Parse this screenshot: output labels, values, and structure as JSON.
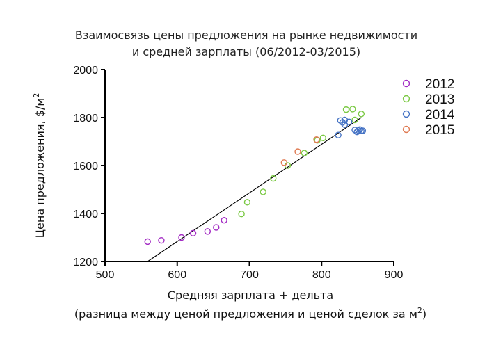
{
  "chart_data": {
    "type": "scatter",
    "title": "Взаимосвязь цены предложения на рынке недвижимости",
    "subtitle": "и средней зарплаты (06/2012-03/2015)",
    "xlabel": "Средняя зарплата + дельта",
    "xlabel2_main": "(разница между ценой предложения и ценой сделок за м",
    "xlabel2_sup": "2",
    "xlabel2_end": ")",
    "ylabel_main": "Цена предложения, $/м",
    "ylabel_sup": "2",
    "xlim": [
      500,
      900
    ],
    "ylim": [
      1200,
      2000
    ],
    "xticks": [
      500,
      600,
      700,
      800,
      900
    ],
    "yticks": [
      1200,
      1400,
      1600,
      1800,
      2000
    ],
    "grid": false,
    "legend_position": "top-right",
    "series": [
      {
        "name": "2012",
        "color": "#a32cc4",
        "points": [
          [
            559,
            1283
          ],
          [
            578,
            1288
          ],
          [
            606,
            1300
          ],
          [
            622,
            1318
          ],
          [
            642,
            1325
          ],
          [
            654,
            1342
          ],
          [
            665,
            1372
          ]
        ]
      },
      {
        "name": "2013",
        "color": "#7ac943",
        "points": [
          [
            689,
            1398
          ],
          [
            697,
            1447
          ],
          [
            719,
            1490
          ],
          [
            733,
            1546
          ],
          [
            753,
            1600
          ],
          [
            776,
            1652
          ],
          [
            794,
            1705
          ],
          [
            802,
            1715
          ],
          [
            834,
            1833
          ],
          [
            843,
            1835
          ],
          [
            846,
            1790
          ],
          [
            855,
            1815
          ]
        ]
      },
      {
        "name": "2014",
        "color": "#4472c4",
        "points": [
          [
            823,
            1727
          ],
          [
            826,
            1788
          ],
          [
            829,
            1780
          ],
          [
            832,
            1770
          ],
          [
            832,
            1790
          ],
          [
            838,
            1782
          ],
          [
            846,
            1748
          ],
          [
            849,
            1740
          ],
          [
            851,
            1746
          ],
          [
            853,
            1750
          ],
          [
            855,
            1744
          ],
          [
            857,
            1745
          ]
        ]
      },
      {
        "name": "2015",
        "color": "#e07b53",
        "points": [
          [
            748,
            1612
          ],
          [
            767,
            1658
          ],
          [
            793,
            1708
          ]
        ]
      }
    ],
    "trendline": {
      "x": [
        559,
        855
      ],
      "y": [
        1200,
        1800
      ],
      "color": "#000000"
    }
  }
}
